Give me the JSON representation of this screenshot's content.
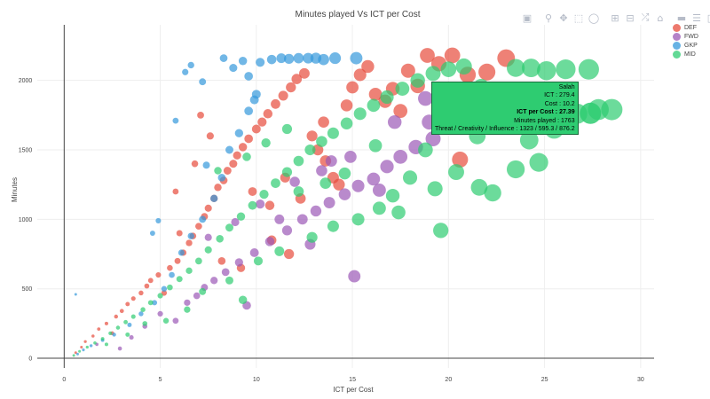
{
  "chart_data": {
    "type": "scatter",
    "title": "Minutes played Vs ICT per Cost",
    "xlabel": "ICT per Cost",
    "ylabel": "Minutes",
    "xlim": [
      -1.4,
      30.7
    ],
    "ylim": [
      -70,
      2400
    ],
    "xticks": [
      0,
      5,
      10,
      15,
      20,
      25,
      30
    ],
    "yticks": [
      0,
      500,
      1000,
      1500,
      2000
    ],
    "grid": true,
    "legend_position": "top-right",
    "series": [
      {
        "name": "DEF",
        "color": "#e74c3c",
        "points": [
          [
            0.6,
            40
          ],
          [
            0.9,
            80
          ],
          [
            1.1,
            120
          ],
          [
            1.5,
            160
          ],
          [
            1.8,
            210
          ],
          [
            2.2,
            250
          ],
          [
            2.5,
            180
          ],
          [
            2.7,
            300
          ],
          [
            3.0,
            340
          ],
          [
            3.3,
            390
          ],
          [
            3.6,
            430
          ],
          [
            4.0,
            470
          ],
          [
            4.3,
            520
          ],
          [
            4.5,
            560
          ],
          [
            4.9,
            600
          ],
          [
            5.2,
            470
          ],
          [
            5.5,
            650
          ],
          [
            5.9,
            700
          ],
          [
            6.2,
            760
          ],
          [
            6.5,
            830
          ],
          [
            6.7,
            880
          ],
          [
            7.0,
            950
          ],
          [
            7.3,
            1020
          ],
          [
            7.5,
            1080
          ],
          [
            7.8,
            1150
          ],
          [
            8.0,
            1230
          ],
          [
            8.3,
            1280
          ],
          [
            8.5,
            1350
          ],
          [
            8.8,
            1400
          ],
          [
            9.0,
            1460
          ],
          [
            9.3,
            1520
          ],
          [
            9.6,
            1580
          ],
          [
            10.0,
            1650
          ],
          [
            10.3,
            1700
          ],
          [
            10.6,
            1760
          ],
          [
            11.0,
            1830
          ],
          [
            11.4,
            1890
          ],
          [
            11.8,
            1950
          ],
          [
            12.1,
            2010
          ],
          [
            12.5,
            2050
          ],
          [
            12.9,
            1600
          ],
          [
            13.2,
            1500
          ],
          [
            13.6,
            1420
          ],
          [
            14.0,
            1300
          ],
          [
            14.3,
            1250
          ],
          [
            14.7,
            1820
          ],
          [
            15.0,
            1950
          ],
          [
            15.4,
            2040
          ],
          [
            15.8,
            2100
          ],
          [
            16.2,
            1900
          ],
          [
            16.7,
            1850
          ],
          [
            17.1,
            1940
          ],
          [
            17.5,
            1780
          ],
          [
            17.9,
            2070
          ],
          [
            18.4,
            1960
          ],
          [
            18.9,
            2180
          ],
          [
            19.5,
            2120
          ],
          [
            20.2,
            2180
          ],
          [
            20.6,
            1430
          ],
          [
            21.0,
            2040
          ],
          [
            22.0,
            2060
          ],
          [
            23.0,
            2160
          ],
          [
            6.0,
            900
          ],
          [
            6.8,
            1400
          ],
          [
            7.6,
            1600
          ],
          [
            9.8,
            1200
          ],
          [
            10.7,
            1100
          ],
          [
            11.5,
            1300
          ],
          [
            12.3,
            1150
          ],
          [
            13.5,
            1700
          ],
          [
            8.2,
            700
          ],
          [
            9.2,
            650
          ],
          [
            10.8,
            850
          ],
          [
            11.7,
            750
          ],
          [
            5.8,
            1200
          ],
          [
            7.1,
            1750
          ]
        ]
      },
      {
        "name": "FWD",
        "color": "#9b59b6",
        "points": [
          [
            1.7,
            100
          ],
          [
            2.9,
            70
          ],
          [
            3.5,
            150
          ],
          [
            4.2,
            230
          ],
          [
            5.0,
            320
          ],
          [
            5.8,
            270
          ],
          [
            6.4,
            400
          ],
          [
            6.9,
            450
          ],
          [
            7.3,
            510
          ],
          [
            7.8,
            560
          ],
          [
            8.4,
            620
          ],
          [
            9.1,
            690
          ],
          [
            9.9,
            760
          ],
          [
            10.7,
            840
          ],
          [
            11.6,
            920
          ],
          [
            12.4,
            1000
          ],
          [
            13.1,
            1060
          ],
          [
            13.8,
            1120
          ],
          [
            14.6,
            1180
          ],
          [
            15.3,
            1240
          ],
          [
            16.1,
            1290
          ],
          [
            16.8,
            1380
          ],
          [
            17.5,
            1450
          ],
          [
            18.3,
            1520
          ],
          [
            19.2,
            1580
          ],
          [
            15.1,
            590
          ],
          [
            13.4,
            1350
          ],
          [
            11.2,
            1000
          ],
          [
            9.5,
            380
          ],
          [
            12.8,
            820
          ],
          [
            14.9,
            1450
          ],
          [
            17.2,
            1700
          ],
          [
            18.8,
            1870
          ],
          [
            16.4,
            1210
          ],
          [
            7.5,
            870
          ],
          [
            8.9,
            980
          ],
          [
            10.2,
            1110
          ],
          [
            12.0,
            1270
          ],
          [
            13.9,
            1420
          ],
          [
            19.0,
            1700
          ]
        ]
      },
      {
        "name": "GKP",
        "color": "#3498db",
        "points": [
          [
            0.7,
            30
          ],
          [
            1.0,
            60
          ],
          [
            1.4,
            90
          ],
          [
            2.0,
            130
          ],
          [
            2.6,
            170
          ],
          [
            3.4,
            240
          ],
          [
            4.0,
            320
          ],
          [
            4.7,
            400
          ],
          [
            5.2,
            500
          ],
          [
            5.6,
            600
          ],
          [
            6.1,
            760
          ],
          [
            6.6,
            880
          ],
          [
            7.2,
            1000
          ],
          [
            7.8,
            1150
          ],
          [
            8.2,
            1300
          ],
          [
            8.6,
            1500
          ],
          [
            9.1,
            1620
          ],
          [
            9.6,
            1780
          ],
          [
            10.0,
            1900
          ],
          [
            5.8,
            1710
          ],
          [
            6.3,
            2060
          ],
          [
            6.6,
            2110
          ],
          [
            7.2,
            1990
          ],
          [
            8.3,
            2160
          ],
          [
            8.8,
            2090
          ],
          [
            9.3,
            2140
          ],
          [
            9.6,
            2030
          ],
          [
            10.2,
            2130
          ],
          [
            10.8,
            2150
          ],
          [
            11.3,
            2160
          ],
          [
            11.7,
            2155
          ],
          [
            12.2,
            2160
          ],
          [
            12.7,
            2160
          ],
          [
            13.1,
            2160
          ],
          [
            13.5,
            2150
          ],
          [
            14.1,
            2160
          ],
          [
            15.2,
            2160
          ],
          [
            4.9,
            990
          ],
          [
            4.6,
            900
          ],
          [
            0.6,
            460
          ],
          [
            7.4,
            1390
          ],
          [
            9.9,
            1860
          ]
        ]
      },
      {
        "name": "MID",
        "color": "#2ecc71",
        "points": [
          [
            0.5,
            20
          ],
          [
            0.8,
            50
          ],
          [
            1.2,
            80
          ],
          [
            1.6,
            110
          ],
          [
            2.0,
            140
          ],
          [
            2.4,
            180
          ],
          [
            2.8,
            220
          ],
          [
            3.2,
            260
          ],
          [
            3.6,
            300
          ],
          [
            4.1,
            350
          ],
          [
            4.5,
            400
          ],
          [
            5.0,
            450
          ],
          [
            5.5,
            510
          ],
          [
            6.0,
            570
          ],
          [
            6.5,
            630
          ],
          [
            7.0,
            700
          ],
          [
            7.5,
            780
          ],
          [
            8.1,
            860
          ],
          [
            8.6,
            940
          ],
          [
            9.2,
            1020
          ],
          [
            9.8,
            1100
          ],
          [
            10.4,
            1180
          ],
          [
            11.0,
            1260
          ],
          [
            11.6,
            1340
          ],
          [
            12.2,
            1420
          ],
          [
            12.8,
            1500
          ],
          [
            13.4,
            1560
          ],
          [
            14.0,
            1620
          ],
          [
            14.7,
            1690
          ],
          [
            15.4,
            1760
          ],
          [
            16.1,
            1820
          ],
          [
            16.8,
            1880
          ],
          [
            17.6,
            1940
          ],
          [
            18.4,
            2000
          ],
          [
            19.2,
            2050
          ],
          [
            20.0,
            2080
          ],
          [
            20.8,
            2100
          ],
          [
            21.7,
            1950
          ],
          [
            22.6,
            1800
          ],
          [
            23.5,
            2090
          ],
          [
            24.3,
            2090
          ],
          [
            25.1,
            2070
          ],
          [
            26.1,
            2080
          ],
          [
            27.3,
            2080
          ],
          [
            27.8,
            1790
          ],
          [
            28.5,
            1790
          ],
          [
            26.7,
            1760
          ],
          [
            23.5,
            1360
          ],
          [
            24.7,
            1410
          ],
          [
            21.6,
            1230
          ],
          [
            22.3,
            1190
          ],
          [
            20.4,
            1340
          ],
          [
            19.6,
            920
          ],
          [
            17.4,
            1050
          ],
          [
            16.4,
            1080
          ],
          [
            15.3,
            1000
          ],
          [
            14.0,
            950
          ],
          [
            12.9,
            870
          ],
          [
            11.2,
            770
          ],
          [
            10.1,
            700
          ],
          [
            9.3,
            420
          ],
          [
            8.6,
            560
          ],
          [
            7.2,
            480
          ],
          [
            6.4,
            350
          ],
          [
            5.3,
            270
          ],
          [
            4.2,
            250
          ],
          [
            3.3,
            170
          ],
          [
            2.2,
            100
          ],
          [
            18.0,
            1300
          ],
          [
            19.3,
            1220
          ],
          [
            17.1,
            1170
          ],
          [
            16.2,
            1530
          ],
          [
            14.6,
            1330
          ],
          [
            13.6,
            1260
          ],
          [
            12.2,
            1200
          ],
          [
            20.6,
            1700
          ],
          [
            21.5,
            1600
          ],
          [
            22.8,
            1680
          ],
          [
            24.2,
            1570
          ],
          [
            25.5,
            1650
          ],
          [
            8.0,
            1350
          ],
          [
            9.5,
            1450
          ],
          [
            10.5,
            1550
          ],
          [
            11.6,
            1650
          ],
          [
            18.8,
            1500
          ]
        ]
      }
    ],
    "hovered_point": {
      "x": 27.39,
      "y": 1763,
      "series": "MID"
    }
  },
  "legend": [
    "DEF",
    "FWD",
    "GKP",
    "MID"
  ],
  "tooltip": {
    "line1": "Salah",
    "line2": "ICT : 279.4",
    "line3": "Cost : 10.2",
    "line4": "ICT per Cost : 27.39",
    "line5": "Minutes played : 1763",
    "line6": "Threat / Creativity / Influence : 1323 / 595.3 / 876.2"
  },
  "modebar": {
    "icons": [
      "camera-icon",
      "zoom-icon",
      "pan-icon",
      "box-select-icon",
      "lasso-select-icon",
      "zoom-in-icon",
      "zoom-out-icon",
      "autoscale-icon",
      "reset-axes-icon",
      "spike-lines-icon",
      "compare-hover-icon",
      "closest-hover-icon",
      "plotly-logo-icon"
    ]
  }
}
